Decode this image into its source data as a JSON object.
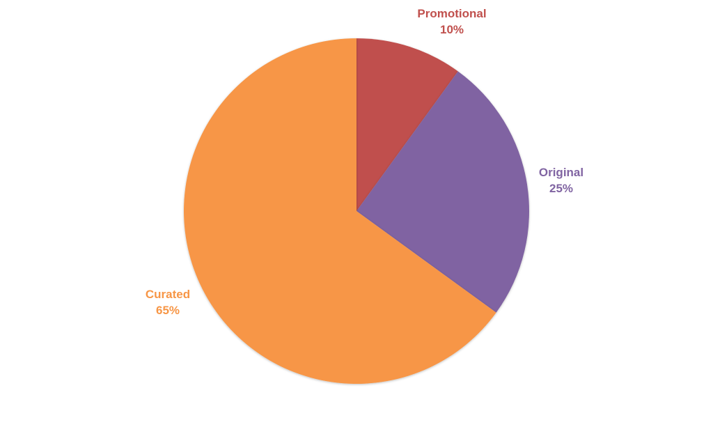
{
  "chart_data": {
    "type": "pie",
    "title": "",
    "slices": [
      {
        "label": "Promotional",
        "percent_label": "10%",
        "value": 10,
        "color": "#c0504d"
      },
      {
        "label": "Original",
        "percent_label": "25%",
        "value": 25,
        "color": "#8064a2"
      },
      {
        "label": "Curated",
        "percent_label": "65%",
        "value": 65,
        "color": "#f79646"
      }
    ],
    "start_angle": "12 o'clock",
    "direction": "clockwise",
    "legend": "none",
    "data_labels": "outside, category name and percentage"
  }
}
